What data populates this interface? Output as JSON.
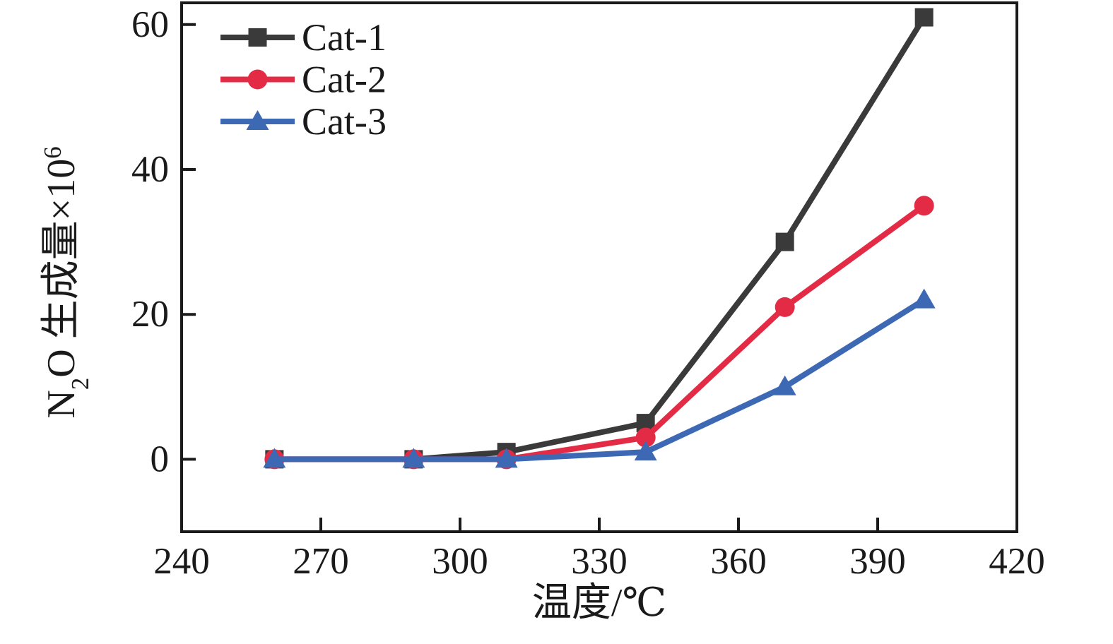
{
  "figure": {
    "background": "#ffffff",
    "axis_color": "#1a1a1a"
  },
  "chart_data": {
    "type": "line",
    "title": "",
    "xlabel": "温度/℃",
    "ylabel": "N₂O 生成量×10⁶",
    "ylabel_parts": [
      {
        "t": "N"
      },
      {
        "t": "2",
        "sub": true
      },
      {
        "t": "O 生成量×10"
      },
      {
        "t": "6",
        "sup": true
      }
    ],
    "x": [
      260,
      290,
      310,
      340,
      370,
      400
    ],
    "series": [
      {
        "name": "Cat-1",
        "color": "#3a3a3a",
        "marker": "square",
        "values": [
          0,
          0,
          1,
          5,
          30,
          61
        ]
      },
      {
        "name": "Cat-2",
        "color": "#e32b45",
        "marker": "circle",
        "values": [
          0,
          0,
          0,
          3,
          21,
          35
        ]
      },
      {
        "name": "Cat-3",
        "color": "#3d68b4",
        "marker": "triangle",
        "values": [
          0,
          0,
          0,
          1,
          10,
          22
        ]
      }
    ],
    "x_ticks": [
      240,
      270,
      300,
      330,
      360,
      390,
      420
    ],
    "y_ticks": [
      0,
      20,
      40,
      60
    ],
    "xlim": [
      240,
      420
    ],
    "ylim": [
      -10,
      63
    ],
    "grid": false,
    "legend_position": "top-left",
    "legend_labels": [
      "Cat-1",
      "Cat-2",
      "Cat-3"
    ]
  }
}
